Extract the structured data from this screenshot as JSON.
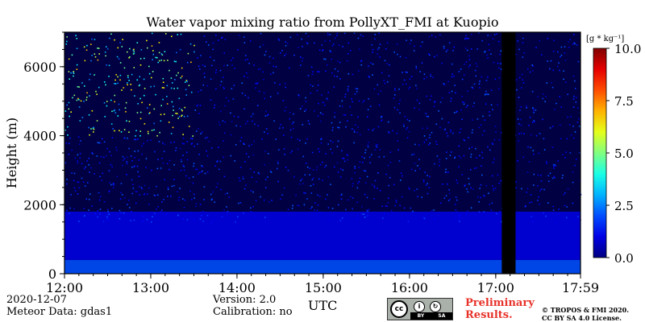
{
  "chart_data": {
    "type": "heatmap",
    "title": "Water vapor mixing ratio from PollyXT_FMI at Kuopio",
    "ylabel": "Height (m)",
    "xlabel": "UTC",
    "x_ticks": [
      "12:00",
      "13:00",
      "14:00",
      "15:00",
      "16:00",
      "17:00",
      "17:59"
    ],
    "y_ticks": [
      0,
      2000,
      4000,
      6000
    ],
    "ylim": [
      0,
      7000
    ],
    "x_range_hours": [
      12.0,
      17.983
    ],
    "colorbar": {
      "unit": "[g * kg⁻¹]",
      "ticks": [
        "0.0",
        "2.5",
        "5.0",
        "7.5",
        "10.0"
      ],
      "range": [
        0,
        10
      ],
      "colormap": "jet"
    },
    "no_data_gap_hours": [
      17.07,
      17.23
    ],
    "background_color": "#000000",
    "layers": [
      {
        "height_range_m": [
          0,
          400
        ],
        "value_gkg": 2.0
      },
      {
        "height_range_m": [
          400,
          1800
        ],
        "value_gkg": 1.0
      },
      {
        "height_range_m": [
          1800,
          7000
        ],
        "value_gkg": 0.6
      }
    ]
  },
  "footer": {
    "date": "2020-12-07",
    "meteor": "Meteor Data: gdas1",
    "version": "Version: 2.0",
    "calibration": "Calibration: no",
    "preliminary_line1": "Preliminary",
    "preliminary_line2": "Results.",
    "copyright_line1": "© TROPOS & FMI 2020.",
    "copyright_line2": "CC BY SA 4.0 License.",
    "license_badge": "cc-by-sa",
    "license_text_1": "cc",
    "license_text_2": "BY",
    "license_text_3": "SA"
  }
}
